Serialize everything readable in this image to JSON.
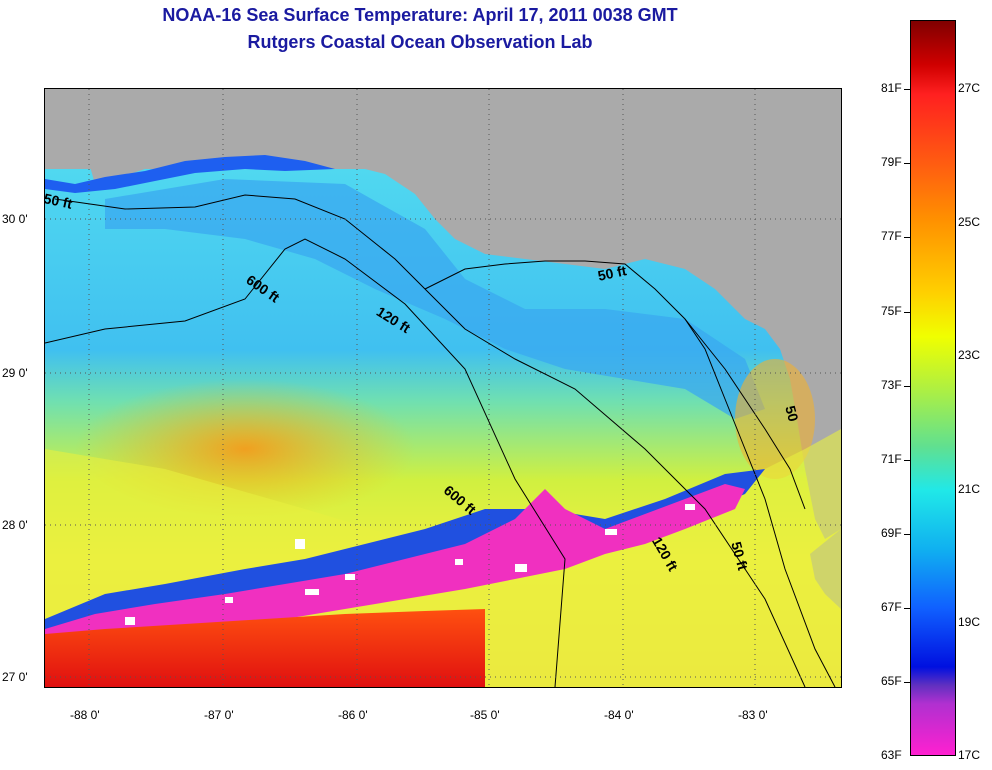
{
  "header": {
    "title": "NOAA-16 Sea Surface Temperature:  April 17, 2011 0038 GMT",
    "subtitle": "Rutgers Coastal Ocean Observation Lab"
  },
  "map": {
    "lat_labels": [
      "30 0'",
      "29 0'",
      "28 0'",
      "27 0'"
    ],
    "lon_labels": [
      "-88 0'",
      "-87 0'",
      "-86 0'",
      "-85 0'",
      "-84 0'",
      "-83 0'"
    ],
    "contour_labels": [
      "50 ft",
      "600 ft",
      "120 ft",
      "50 ft",
      "600 ft",
      "120 ft",
      "50 ft",
      "50"
    ],
    "land_color": "#aaaaaa"
  },
  "colorbar": {
    "fahrenheit": [
      "81F",
      "79F",
      "77F",
      "75F",
      "73F",
      "71F",
      "69F",
      "67F",
      "65F",
      "63F"
    ],
    "celsius": [
      "27C",
      "25C",
      "23C",
      "21C",
      "19C",
      "17C"
    ]
  }
}
